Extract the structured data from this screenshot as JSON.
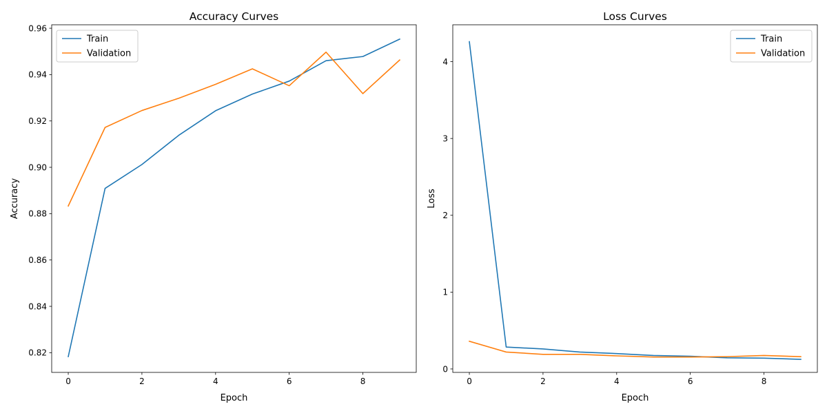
{
  "chart_data": [
    {
      "type": "line",
      "title": "Accuracy Curves",
      "xlabel": "Epoch",
      "ylabel": "Accuracy",
      "x": [
        0,
        1,
        2,
        3,
        4,
        5,
        6,
        7,
        8,
        9
      ],
      "xlim": [
        -0.45,
        9.45
      ],
      "ylim": [
        0.8115,
        0.9615
      ],
      "xticks": [
        0,
        2,
        4,
        6,
        8
      ],
      "xtick_labels": [
        "0",
        "2",
        "4",
        "6",
        "8"
      ],
      "yticks": [
        0.82,
        0.84,
        0.86,
        0.88,
        0.9,
        0.92,
        0.94,
        0.96
      ],
      "ytick_labels": [
        "0.82",
        "0.84",
        "0.86",
        "0.88",
        "0.90",
        "0.92",
        "0.94",
        "0.96"
      ],
      "legend_position": "upper left",
      "grid": false,
      "series": [
        {
          "name": "Train",
          "color": "#1f77b4",
          "values": [
            0.8183,
            0.8909,
            0.9012,
            0.9138,
            0.9244,
            0.9316,
            0.9372,
            0.946,
            0.9478,
            0.9553
          ]
        },
        {
          "name": "Validation",
          "color": "#ff7f0e",
          "values": [
            0.8833,
            0.9172,
            0.9245,
            0.9298,
            0.9358,
            0.9425,
            0.9352,
            0.9497,
            0.9318,
            0.9463
          ]
        }
      ]
    },
    {
      "type": "line",
      "title": "Loss Curves",
      "xlabel": "Epoch",
      "ylabel": "Loss",
      "x": [
        0,
        1,
        2,
        3,
        4,
        5,
        6,
        7,
        8,
        9
      ],
      "xlim": [
        -0.45,
        9.45
      ],
      "ylim": [
        -0.045,
        4.48
      ],
      "xticks": [
        0,
        2,
        4,
        6,
        8
      ],
      "xtick_labels": [
        "0",
        "2",
        "4",
        "6",
        "8"
      ],
      "yticks": [
        0,
        1,
        2,
        3,
        4
      ],
      "ytick_labels": [
        "0",
        "1",
        "2",
        "3",
        "4"
      ],
      "legend_position": "upper right",
      "grid": false,
      "series": [
        {
          "name": "Train",
          "color": "#1f77b4",
          "values": [
            4.26,
            0.285,
            0.26,
            0.22,
            0.2,
            0.175,
            0.165,
            0.145,
            0.14,
            0.125
          ]
        },
        {
          "name": "Validation",
          "color": "#ff7f0e",
          "values": [
            0.36,
            0.22,
            0.19,
            0.19,
            0.17,
            0.155,
            0.155,
            0.16,
            0.175,
            0.16
          ]
        }
      ]
    }
  ]
}
